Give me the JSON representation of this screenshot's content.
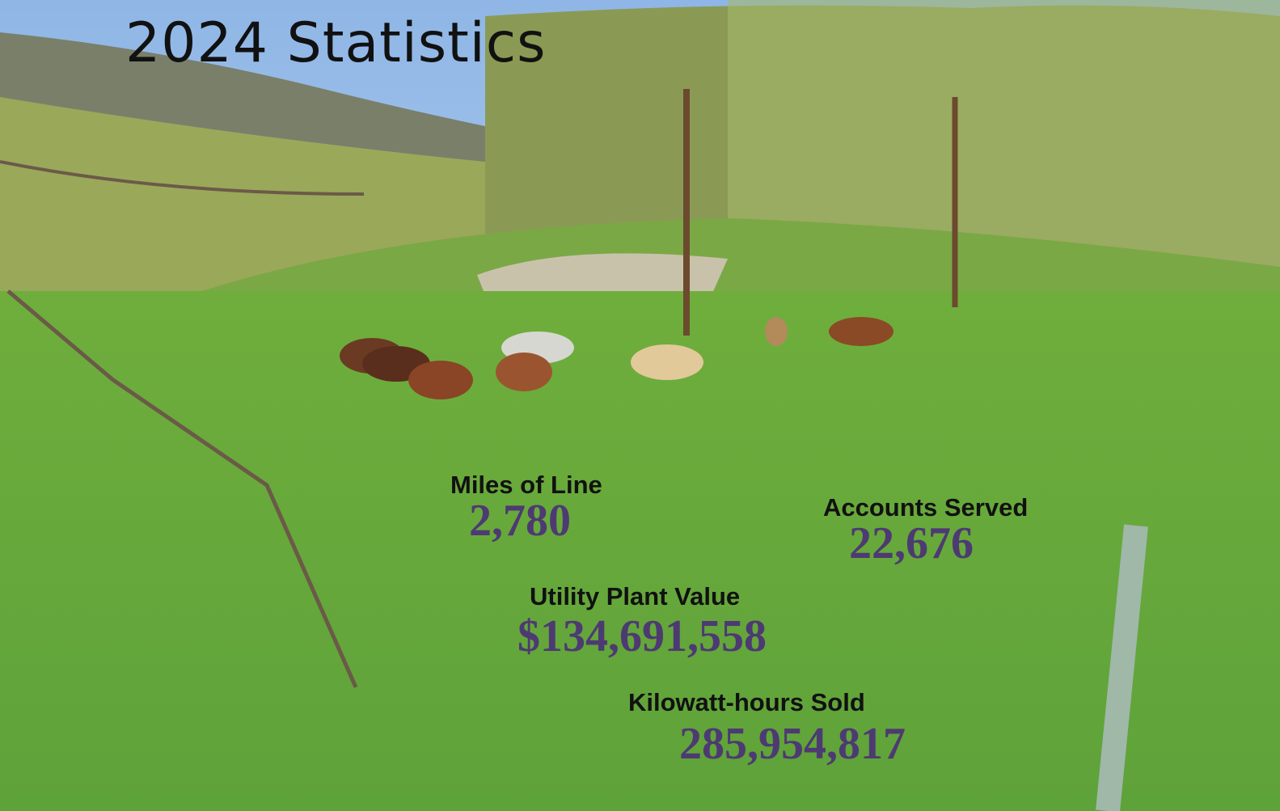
{
  "header": {
    "title": "2024 Statistics"
  },
  "stats": [
    {
      "label": "Miles of Line",
      "value": "2,780"
    },
    {
      "label": "Accounts Served",
      "value": "22,676"
    },
    {
      "label": "Utility Plant Value",
      "value": "$134,691,558"
    },
    {
      "label": "Kilowatt-hours Sold",
      "value": "285,954,817"
    }
  ]
}
